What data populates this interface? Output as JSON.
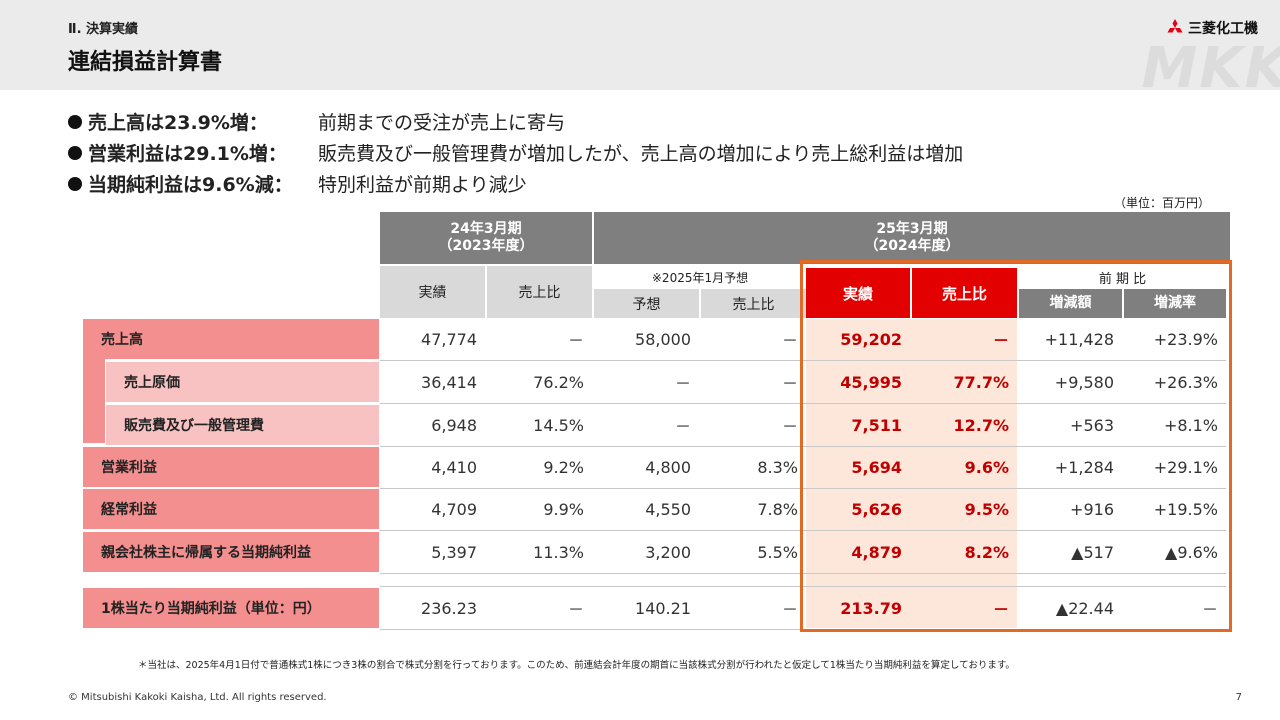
{
  "header": {
    "section": "Ⅱ. 決算実績",
    "title": "連結損益計算書",
    "logo_text": "三菱化工機",
    "watermark": "MKK"
  },
  "bullets": [
    {
      "head": "売上高は23.9%増：",
      "body": "前期までの受注が売上に寄与"
    },
    {
      "head": "営業利益は29.1%増：",
      "body": "販売費及び一般管理費が増加したが、売上高の増加により売上総利益は増加"
    },
    {
      "head": "当期純利益は9.6%減：",
      "body": "特別利益が前期より減少"
    }
  ],
  "unit": "（単位：百万円）",
  "table": {
    "col_groups": {
      "prev": "24年3月期\n（2023年度）",
      "curr": "25年3月期\n（2024年度）"
    },
    "forecast_note": "※2025年1月予想",
    "yoy_label": "前 期 比",
    "headers": {
      "prev_actual": "実績",
      "prev_ratio": "売上比",
      "fc_value": "予想",
      "fc_ratio": "売上比",
      "curr_actual": "実績",
      "curr_ratio": "売上比",
      "yoy_amount": "増減額",
      "yoy_rate": "増減率"
    },
    "rows": [
      {
        "label": "売上高",
        "prev": "47,774",
        "prev_r": "－",
        "fc": "58,000",
        "fc_r": "－",
        "cur": "59,202",
        "cur_r": "－",
        "diff": "+11,428",
        "rate": "+23.9%"
      },
      {
        "label": "売上原価",
        "prev": "36,414",
        "prev_r": "76.2%",
        "fc": "－",
        "fc_r": "－",
        "cur": "45,995",
        "cur_r": "77.7%",
        "diff": "+9,580",
        "rate": "+26.3%"
      },
      {
        "label": "販売費及び一般管理費",
        "prev": "6,948",
        "prev_r": "14.5%",
        "fc": "－",
        "fc_r": "－",
        "cur": "7,511",
        "cur_r": "12.7%",
        "diff": "+563",
        "rate": "+8.1%"
      },
      {
        "label": "営業利益",
        "prev": "4,410",
        "prev_r": "9.2%",
        "fc": "4,800",
        "fc_r": "8.3%",
        "cur": "5,694",
        "cur_r": "9.6%",
        "diff": "+1,284",
        "rate": "+29.1%"
      },
      {
        "label": "経常利益",
        "prev": "4,709",
        "prev_r": "9.9%",
        "fc": "4,550",
        "fc_r": "7.8%",
        "cur": "5,626",
        "cur_r": "9.5%",
        "diff": "+916",
        "rate": "+19.5%"
      },
      {
        "label": "親会社株主に帰属する当期純利益",
        "prev": "5,397",
        "prev_r": "11.3%",
        "fc": "3,200",
        "fc_r": "5.5%",
        "cur": "4,879",
        "cur_r": "8.2%",
        "diff": "▲517",
        "rate": "▲9.6%"
      },
      {
        "label": "1株当たり当期純利益（単位：円）",
        "prev": "236.23",
        "prev_r": "－",
        "fc": "140.21",
        "fc_r": "－",
        "cur": "213.79",
        "cur_r": "－",
        "diff": "▲22.44",
        "rate": "－"
      }
    ]
  },
  "footnote": "＊当社は、2025年4月1日付で普通株式1株につき3株の割合で株式分割を行っております。このため、前連結会計年度の期首に当該株式分割が行われたと仮定して1株当たり当期純利益を算定しております。",
  "copyright": "© Mitsubishi Kakoki Kaisha, Ltd. All rights reserved.",
  "page_number": "7"
}
